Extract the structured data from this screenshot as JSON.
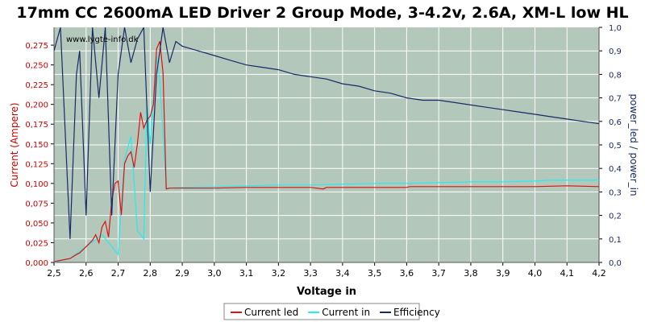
{
  "chart_data": {
    "type": "line",
    "title": "17mm CC 2600mA LED Driver 2 Group Mode, 3-4.2v, 2.6A, XM-L low HL",
    "watermark": "www.lygte-info.dk",
    "xlabel": "Voltage in",
    "ylabel_left": "Current (Ampere)",
    "ylabel_right": "power_led / power_in",
    "xlim": [
      2.5,
      4.2
    ],
    "ylim_left": [
      0,
      0.2975
    ],
    "ylim_right": [
      0,
      1.0
    ],
    "x_ticks": [
      "2,5",
      "2,6",
      "2,7",
      "2,8",
      "2,9",
      "3,0",
      "3,1",
      "3,2",
      "3,3",
      "3,4",
      "3,5",
      "3,6",
      "3,7",
      "3,8",
      "3,9",
      "4,0",
      "4,1",
      "4,2"
    ],
    "y_ticks_left": [
      "0,000",
      "0,025",
      "0,050",
      "0,075",
      "0,100",
      "0,125",
      "0,150",
      "0,175",
      "0,200",
      "0,225",
      "0,250",
      "0,275"
    ],
    "y_ticks_right": [
      "0,0",
      "0,1",
      "0,2",
      "0,3",
      "0,4",
      "0,5",
      "0,6",
      "0,7",
      "0,8",
      "0,9",
      "1,0"
    ],
    "grid": true,
    "legend_position": "bottom",
    "colors": {
      "plot_bg": "#b3c7bb",
      "grid": "#ffffff",
      "current_led": "#dd1111",
      "current_in": "#22eeee",
      "efficiency": "#1a2a66",
      "left_axis_text": "#cc0000",
      "right_axis_text": "#1a2a66"
    },
    "series": [
      {
        "name": "Current led",
        "axis": "left",
        "x": [
          2.5,
          2.55,
          2.57,
          2.58,
          2.6,
          2.62,
          2.63,
          2.64,
          2.65,
          2.66,
          2.67,
          2.68,
          2.69,
          2.7,
          2.71,
          2.72,
          2.73,
          2.74,
          2.75,
          2.76,
          2.77,
          2.78,
          2.79,
          2.8,
          2.81,
          2.82,
          2.83,
          2.84,
          2.85,
          2.86,
          2.9,
          3.0,
          3.1,
          3.2,
          3.3,
          3.34,
          3.35,
          3.4,
          3.5,
          3.6,
          3.61,
          3.7,
          3.8,
          3.9,
          4.0,
          4.1,
          4.2
        ],
        "y": [
          0.001,
          0.005,
          0.01,
          0.012,
          0.02,
          0.028,
          0.035,
          0.025,
          0.045,
          0.052,
          0.032,
          0.078,
          0.1,
          0.103,
          0.06,
          0.125,
          0.135,
          0.14,
          0.12,
          0.15,
          0.19,
          0.17,
          0.18,
          0.185,
          0.2,
          0.27,
          0.28,
          0.24,
          0.093,
          0.094,
          0.094,
          0.094,
          0.095,
          0.095,
          0.095,
          0.093,
          0.095,
          0.095,
          0.095,
          0.095,
          0.096,
          0.096,
          0.096,
          0.096,
          0.096,
          0.097,
          0.096
        ]
      },
      {
        "name": "Current in",
        "axis": "left",
        "x": [
          2.5,
          2.55,
          2.6,
          2.65,
          2.7,
          2.72,
          2.74,
          2.76,
          2.78,
          2.79,
          2.8,
          2.81,
          2.82,
          2.83,
          2.85,
          2.9,
          3.0,
          3.1,
          3.2,
          3.3,
          3.4,
          3.5,
          3.6,
          3.7,
          3.8,
          3.9,
          4.0,
          4.05,
          4.1,
          4.2
        ],
        "y": [
          0.0,
          0.005,
          0.02,
          0.035,
          0.01,
          0.13,
          0.16,
          0.04,
          0.03,
          0.2,
          0.15,
          0.21,
          0.26,
          0.23,
          0.094,
          0.095,
          0.096,
          0.097,
          0.098,
          0.098,
          0.099,
          0.1,
          0.1,
          0.101,
          0.102,
          0.102,
          0.103,
          0.104,
          0.104,
          0.104
        ]
      },
      {
        "name": "Efficiency",
        "axis": "right",
        "x": [
          2.5,
          2.52,
          2.55,
          2.57,
          2.58,
          2.6,
          2.62,
          2.64,
          2.66,
          2.68,
          2.7,
          2.72,
          2.74,
          2.76,
          2.78,
          2.8,
          2.82,
          2.84,
          2.86,
          2.88,
          2.9,
          2.95,
          3.0,
          3.05,
          3.1,
          3.15,
          3.2,
          3.25,
          3.3,
          3.35,
          3.4,
          3.45,
          3.5,
          3.55,
          3.6,
          3.65,
          3.7,
          3.75,
          3.8,
          3.85,
          3.9,
          3.95,
          4.0,
          4.05,
          4.1,
          4.15,
          4.2
        ],
        "y": [
          0.9,
          1.0,
          0.1,
          0.8,
          0.9,
          0.2,
          1.0,
          0.7,
          1.0,
          0.2,
          0.8,
          1.0,
          0.85,
          0.95,
          1.0,
          0.3,
          0.8,
          1.0,
          0.85,
          0.94,
          0.92,
          0.9,
          0.88,
          0.86,
          0.84,
          0.83,
          0.82,
          0.8,
          0.79,
          0.78,
          0.76,
          0.75,
          0.73,
          0.72,
          0.7,
          0.69,
          0.69,
          0.68,
          0.67,
          0.66,
          0.65,
          0.64,
          0.63,
          0.62,
          0.61,
          0.6,
          0.59
        ]
      }
    ]
  }
}
